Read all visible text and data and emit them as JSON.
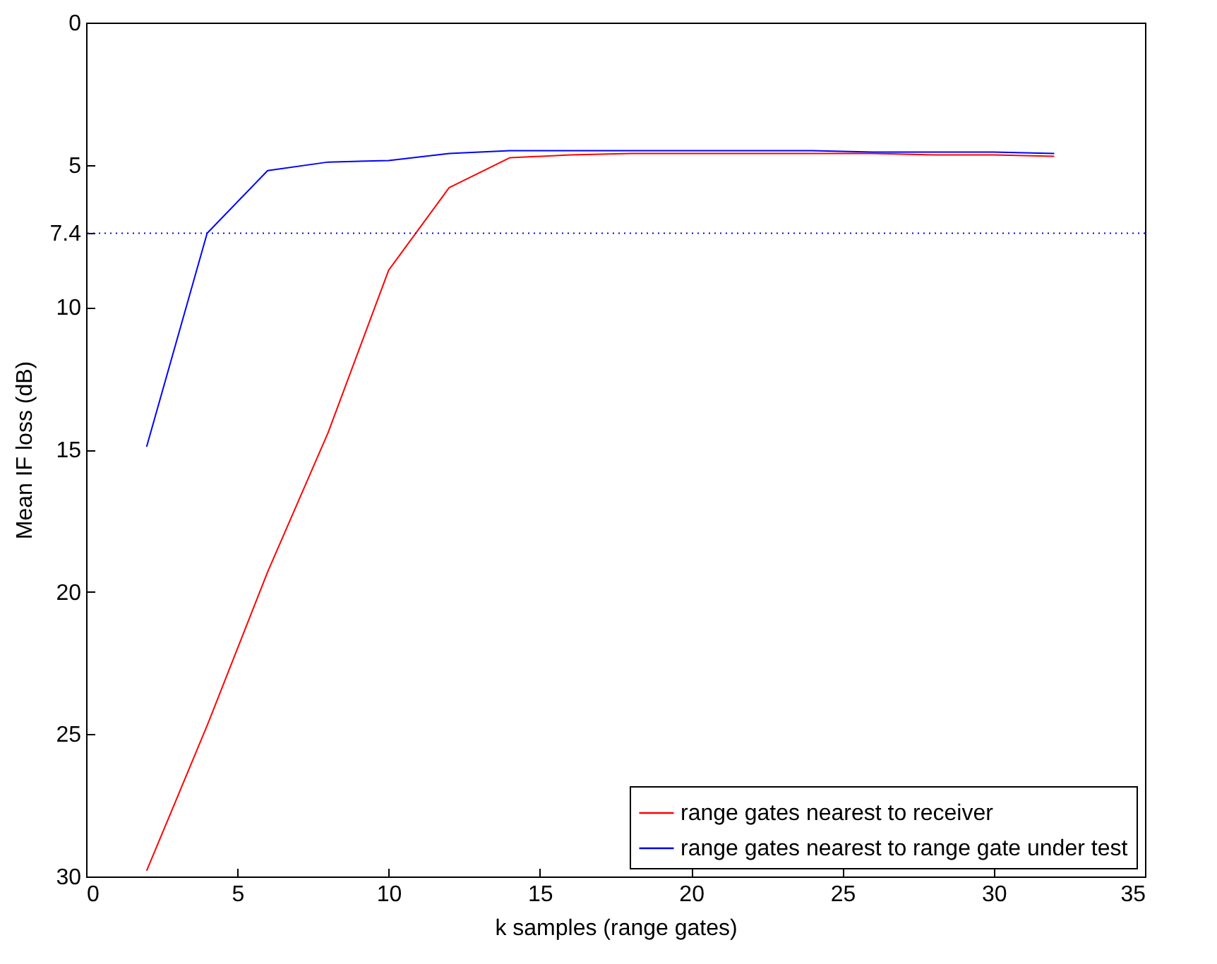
{
  "chart_data": {
    "type": "line",
    "xlabel": "k samples (range gates)",
    "ylabel": "Mean IF loss (dB)",
    "x": [
      2,
      4,
      6,
      8,
      10,
      12,
      14,
      16,
      18,
      20,
      22,
      24,
      26,
      28,
      30,
      32
    ],
    "series": [
      {
        "name": "range gates nearest to receiver",
        "color": "#ff0000",
        "values": [
          29.8,
          24.7,
          19.3,
          14.4,
          8.7,
          5.8,
          4.75,
          4.65,
          4.6,
          4.6,
          4.6,
          4.6,
          4.6,
          4.65,
          4.65,
          4.7
        ]
      },
      {
        "name": "range gates nearest to range gate under test",
        "color": "#0000ff",
        "values": [
          14.9,
          7.4,
          5.2,
          4.9,
          4.85,
          4.6,
          4.5,
          4.5,
          4.5,
          4.5,
          4.5,
          4.5,
          4.55,
          4.55,
          4.55,
          4.6
        ]
      }
    ],
    "xlim": [
      0,
      35
    ],
    "xticks": [
      0,
      5,
      10,
      15,
      20,
      25,
      30,
      35
    ],
    "ylim": [
      30,
      0
    ],
    "yticks": [
      0,
      5,
      7.4,
      10,
      15,
      20,
      25,
      30
    ],
    "ref_lines": [
      {
        "axis": "y",
        "value": 7.4,
        "color": "#0000ff",
        "line_style": "dotted"
      }
    ],
    "legend": "bottom right",
    "grid": false,
    "line_style": "solid"
  }
}
